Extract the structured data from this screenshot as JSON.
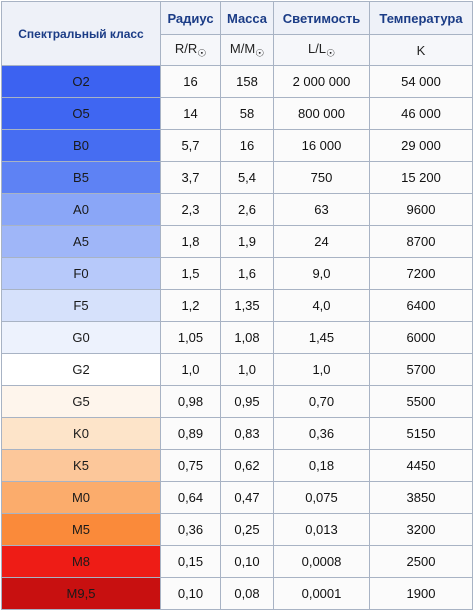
{
  "headers": {
    "class": "Спектральный класс",
    "radius": "Радиус",
    "mass": "Масса",
    "luminosity": "Светимость",
    "temperature": "Температура"
  },
  "units": {
    "radius": "R/R",
    "mass": "M/M",
    "luminosity": "L/L",
    "temperature": "K",
    "sun_symbol": "☉"
  },
  "rows": [
    {
      "cls": "O2",
      "radius": "16",
      "mass": "158",
      "lum": "2 000 000",
      "temp": "54 000",
      "color": "#3c62f1"
    },
    {
      "cls": "O5",
      "radius": "14",
      "mass": "58",
      "lum": "800 000",
      "temp": "46 000",
      "color": "#3f66f2"
    },
    {
      "cls": "B0",
      "radius": "5,7",
      "mass": "16",
      "lum": "16 000",
      "temp": "29 000",
      "color": "#466df2"
    },
    {
      "cls": "B5",
      "radius": "3,7",
      "mass": "5,4",
      "lum": "750",
      "temp": "15 200",
      "color": "#5e82f4"
    },
    {
      "cls": "A0",
      "radius": "2,3",
      "mass": "2,6",
      "lum": "63",
      "temp": "9600",
      "color": "#8aa6f7"
    },
    {
      "cls": "A5",
      "radius": "1,8",
      "mass": "1,9",
      "lum": "24",
      "temp": "8700",
      "color": "#9fb6f8"
    },
    {
      "cls": "F0",
      "radius": "1,5",
      "mass": "1,6",
      "lum": "9,0",
      "temp": "7200",
      "color": "#b7c9fa"
    },
    {
      "cls": "F5",
      "radius": "1,2",
      "mass": "1,35",
      "lum": "4,0",
      "temp": "6400",
      "color": "#d6e1fb"
    },
    {
      "cls": "G0",
      "radius": "1,05",
      "mass": "1,08",
      "lum": "1,45",
      "temp": "6000",
      "color": "#edf2fd"
    },
    {
      "cls": "G2",
      "radius": "1,0",
      "mass": "1,0",
      "lum": "1,0",
      "temp": "5700",
      "color": "#ffffff"
    },
    {
      "cls": "G5",
      "radius": "0,98",
      "mass": "0,95",
      "lum": "0,70",
      "temp": "5500",
      "color": "#fef5ec"
    },
    {
      "cls": "K0",
      "radius": "0,89",
      "mass": "0,83",
      "lum": "0,36",
      "temp": "5150",
      "color": "#fde4c9"
    },
    {
      "cls": "K5",
      "radius": "0,75",
      "mass": "0,62",
      "lum": "0,18",
      "temp": "4450",
      "color": "#fcc79a"
    },
    {
      "cls": "M0",
      "radius": "0,64",
      "mass": "0,47",
      "lum": "0,075",
      "temp": "3850",
      "color": "#fbac6c"
    },
    {
      "cls": "M5",
      "radius": "0,36",
      "mass": "0,25",
      "lum": "0,013",
      "temp": "3200",
      "color": "#fa8a3a"
    },
    {
      "cls": "M8",
      "radius": "0,15",
      "mass": "0,10",
      "lum": "0,0008",
      "temp": "2500",
      "color": "#ee1c16"
    },
    {
      "cls": "M9,5",
      "radius": "0,10",
      "mass": "0,08",
      "lum": "0,0001",
      "temp": "1900",
      "color": "#c81010"
    }
  ]
}
